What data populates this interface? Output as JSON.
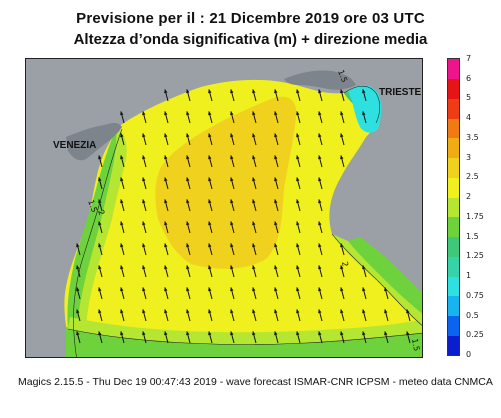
{
  "title": {
    "line1": "Previsione per il  :  21 Dicembre  2019   ore 03 UTC",
    "line2": "Altezza d’onda significativa (m) + direzione media"
  },
  "labels": {
    "venezia": "VENEZIA",
    "trieste": "TRIESTE"
  },
  "contour_labels": [
    "1.5",
    "2",
    "1.5",
    "2",
    "1.5"
  ],
  "footer": "Magics 2.15.5 - Thu Dec 19 00:47:43 2019 - wave forecast  ISMAR-CNR  ICPSM - meteo data   CNMCA",
  "colorbar": {
    "ticks": [
      "0",
      "0.25",
      "0.5",
      "0.75",
      "1",
      "1.25",
      "1.5",
      "1.75",
      "2",
      "2.5",
      "3",
      "3.5",
      "4",
      "5",
      "6",
      "7"
    ],
    "colors": [
      "#0a1ed0",
      "#0a64f0",
      "#18b4f0",
      "#2ee0e0",
      "#36d2a8",
      "#3ec878",
      "#6ed23c",
      "#b4e632",
      "#f0f01e",
      "#f0d21e",
      "#f0ac14",
      "#f07a14",
      "#f03c14",
      "#e61414",
      "#f0148c"
    ]
  },
  "colors": {
    "land": "#9aa0a6",
    "sea_2_2_5": "#f0d21e",
    "sea_1_75_2": "#f0f01e",
    "sea_1_5_1_75": "#b4e632",
    "sea_1_25_1_5": "#6ed23c",
    "sea_1_1_25": "#3ec878",
    "sea_low": "#2ee0e0"
  }
}
